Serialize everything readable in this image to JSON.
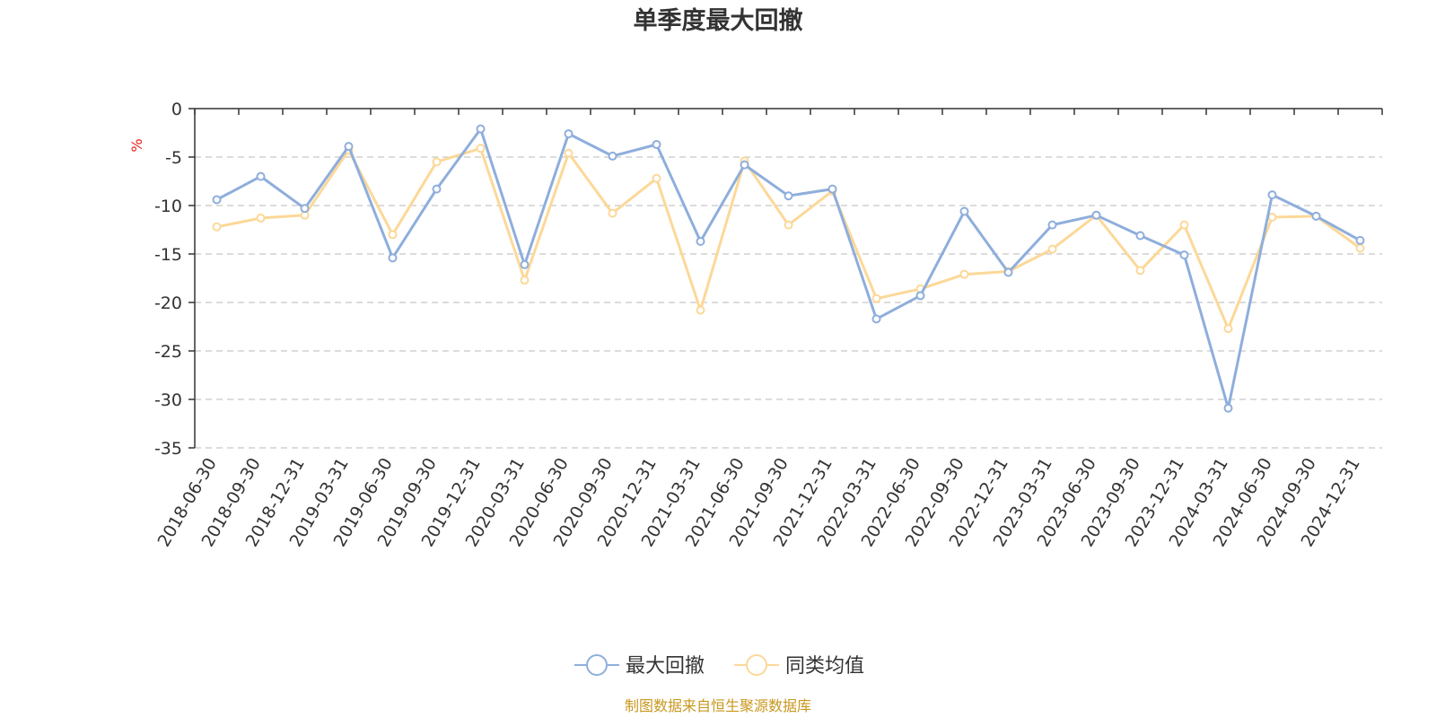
{
  "chart_data": {
    "type": "line",
    "title": "单季度最大回撤",
    "unit_label": "%",
    "unit_color": "#e8201a",
    "source_text": "制图数据来自恒生聚源数据库",
    "source_color": "#c8981e",
    "ylim": [
      -35,
      0
    ],
    "yticks": [
      0,
      -5,
      -10,
      -15,
      -20,
      -25,
      -30,
      -35
    ],
    "grid": true,
    "legend_position": "bottom-center",
    "categories": [
      "2018-06-30",
      "2018-09-30",
      "2018-12-31",
      "2019-03-31",
      "2019-06-30",
      "2019-09-30",
      "2019-12-31",
      "2020-03-31",
      "2020-06-30",
      "2020-09-30",
      "2020-12-31",
      "2021-03-31",
      "2021-06-30",
      "2021-09-30",
      "2021-12-31",
      "2022-03-31",
      "2022-06-30",
      "2022-09-30",
      "2022-12-31",
      "2023-03-31",
      "2023-06-30",
      "2023-09-30",
      "2023-12-31",
      "2024-03-31",
      "2024-06-30",
      "2024-09-30",
      "2024-12-31"
    ],
    "series": [
      {
        "name": "最大回撤",
        "color": "#8eaedc",
        "values": [
          -9.4,
          -7.0,
          -10.3,
          -3.9,
          -15.4,
          -8.3,
          -2.1,
          -16.1,
          -2.6,
          -4.9,
          -3.7,
          -13.7,
          -5.8,
          -9.0,
          -8.3,
          -21.7,
          -19.3,
          -10.6,
          -16.9,
          -12.0,
          -11.0,
          -13.1,
          -15.1,
          -30.9,
          -8.9,
          -11.1,
          -13.6
        ]
      },
      {
        "name": "同类均值",
        "color": "#fcd898",
        "values": [
          -12.2,
          -11.3,
          -11.0,
          -4.3,
          -13.0,
          -5.5,
          -4.1,
          -17.7,
          -4.6,
          -10.8,
          -7.2,
          -20.8,
          -5.4,
          -12.0,
          -8.5,
          -19.6,
          -18.6,
          -17.1,
          -16.8,
          -14.5,
          -11.0,
          -16.7,
          -12.0,
          -22.7,
          -11.2,
          -11.1,
          -14.4
        ]
      }
    ]
  }
}
